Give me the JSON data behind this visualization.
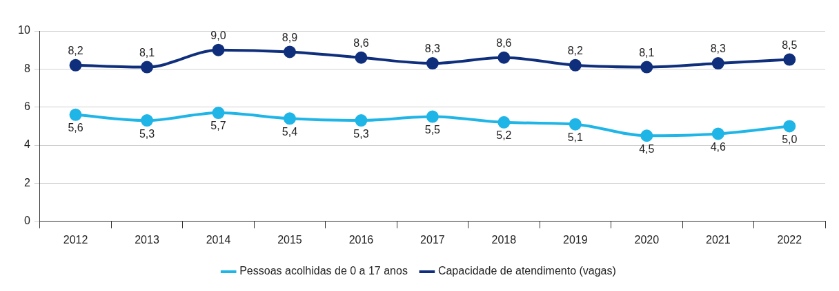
{
  "chart_data": {
    "type": "line",
    "categories": [
      "2012",
      "2013",
      "2014",
      "2015",
      "2016",
      "2017",
      "2018",
      "2019",
      "2020",
      "2021",
      "2022"
    ],
    "series": [
      {
        "name": "Pessoas acolhidas de 0 a 17 anos",
        "color": "#1fb5e6",
        "values": [
          5.6,
          5.3,
          5.7,
          5.4,
          5.3,
          5.5,
          5.2,
          5.1,
          4.5,
          4.6,
          5.0
        ],
        "value_labels": [
          "5,6",
          "5,3",
          "5,7",
          "5,4",
          "5,3",
          "5,5",
          "5,2",
          "5,1",
          "4,5",
          "4,6",
          "5,0"
        ]
      },
      {
        "name": "Capacidade de atendimento (vagas)",
        "color": "#0f2f7c",
        "values": [
          8.2,
          8.1,
          9.0,
          8.9,
          8.6,
          8.3,
          8.6,
          8.2,
          8.1,
          8.3,
          8.5
        ],
        "value_labels": [
          "8,2",
          "8,1",
          "9,0",
          "8,9",
          "8,6",
          "8,3",
          "8,6",
          "8,2",
          "8,1",
          "8,3",
          "8,5"
        ]
      }
    ],
    "ylim": [
      0,
      10
    ],
    "yticks": [
      0,
      2,
      4,
      6,
      8,
      10
    ],
    "grid": "y",
    "legend": "bottom",
    "marker": "circle",
    "line_style": "solid"
  }
}
